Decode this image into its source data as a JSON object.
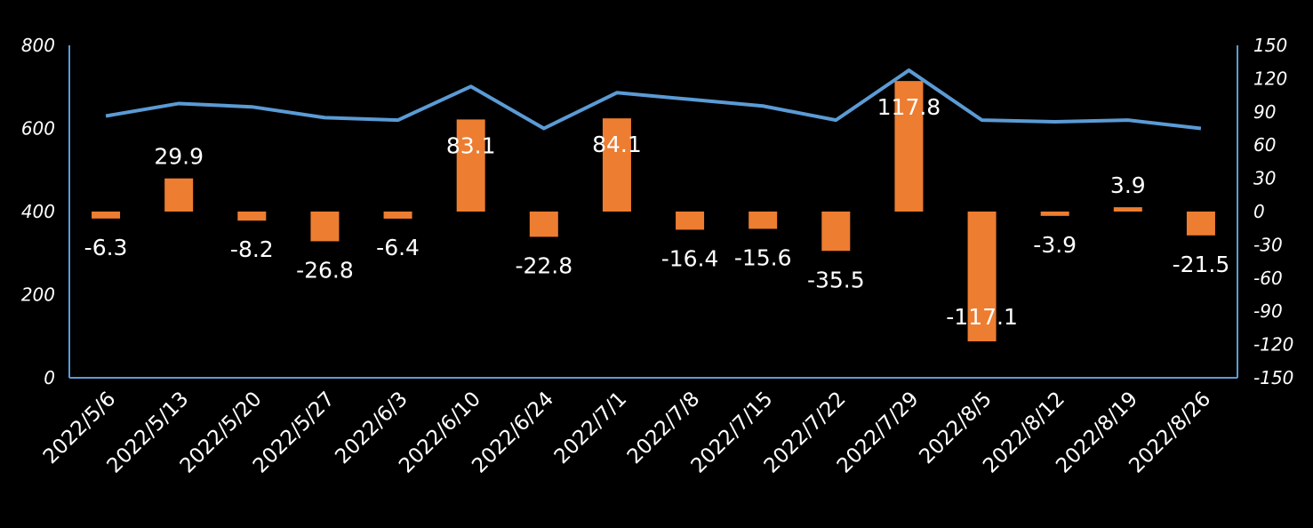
{
  "chart_data": {
    "type": "bar+line",
    "categories": [
      "2022/5/6",
      "2022/5/13",
      "2022/5/20",
      "2022/5/27",
      "2022/6/3",
      "2022/6/10",
      "2022/6/24",
      "2022/7/1",
      "2022/7/8",
      "2022/7/15",
      "2022/7/22",
      "2022/7/29",
      "2022/8/5",
      "2022/8/12",
      "2022/8/19",
      "2022/8/26"
    ],
    "bar_series": {
      "axis": "right",
      "color": "#ED7D31",
      "values": [
        -6.3,
        29.9,
        -8.2,
        -26.8,
        -6.4,
        83.1,
        -22.8,
        84.1,
        -16.4,
        -15.6,
        -35.5,
        117.8,
        -117.1,
        -3.9,
        3.9,
        -21.5
      ],
      "labels": [
        "-6.3",
        "29.9",
        "-8.2",
        "-26.8",
        "-6.4",
        "83.1",
        "-22.8",
        "84.1",
        "-16.4",
        "-15.6",
        "-35.5",
        "117.8",
        "-117.1",
        "-3.9",
        "3.9",
        "-21.5"
      ]
    },
    "line_series": {
      "axis": "left",
      "color": "#5B9BD5",
      "values": [
        630,
        660,
        652,
        626,
        620,
        701,
        600,
        686,
        670,
        654,
        620,
        740,
        620,
        616,
        620,
        600
      ]
    },
    "y_left": {
      "min": 0,
      "max": 800,
      "ticks": [
        "0",
        "200",
        "400",
        "600",
        "800"
      ]
    },
    "y_right": {
      "min": -150,
      "max": 150,
      "ticks": [
        "-150",
        "-120",
        "-90",
        "-60",
        "-30",
        "0",
        "30",
        "60",
        "90",
        "120",
        "150"
      ]
    },
    "axis_color": "#5B9BD5",
    "grid": false,
    "legend": "none"
  }
}
